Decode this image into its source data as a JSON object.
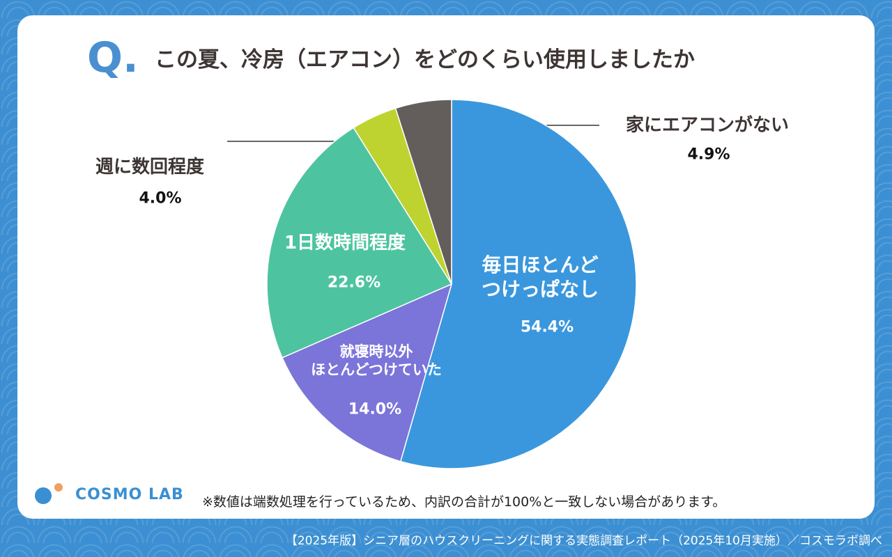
{
  "chart_data": {
    "type": "pie",
    "mark": "Q.",
    "title": "この夏、冷房（エアコン）をどのくらい使用しましたか",
    "categories": [
      "毎日ほとんど\nつけっぱなし",
      "就寝時以外\nほとんどつけていた",
      "1日数時間程度",
      "週に数回程度",
      "家にエアコンがない"
    ],
    "values": [
      54.4,
      14.0,
      22.6,
      4.0,
      4.9
    ],
    "value_labels": [
      "54.4%",
      "14.0%",
      "22.6%",
      "4.0%",
      "4.9%"
    ],
    "colors": [
      "#3a97dd",
      "#7b74d9",
      "#4dc49f",
      "#bed330",
      "#635d5b"
    ],
    "note": "※数値は端数処理を行っているため、内訳の合計が100%と一致しない場合があります。",
    "logo": "COSMO LAB",
    "footer": "【2025年版】シニア層のハウスクリーニングに関する実態調査レポート（2025年10月実施）／コスモラボ調べ"
  }
}
